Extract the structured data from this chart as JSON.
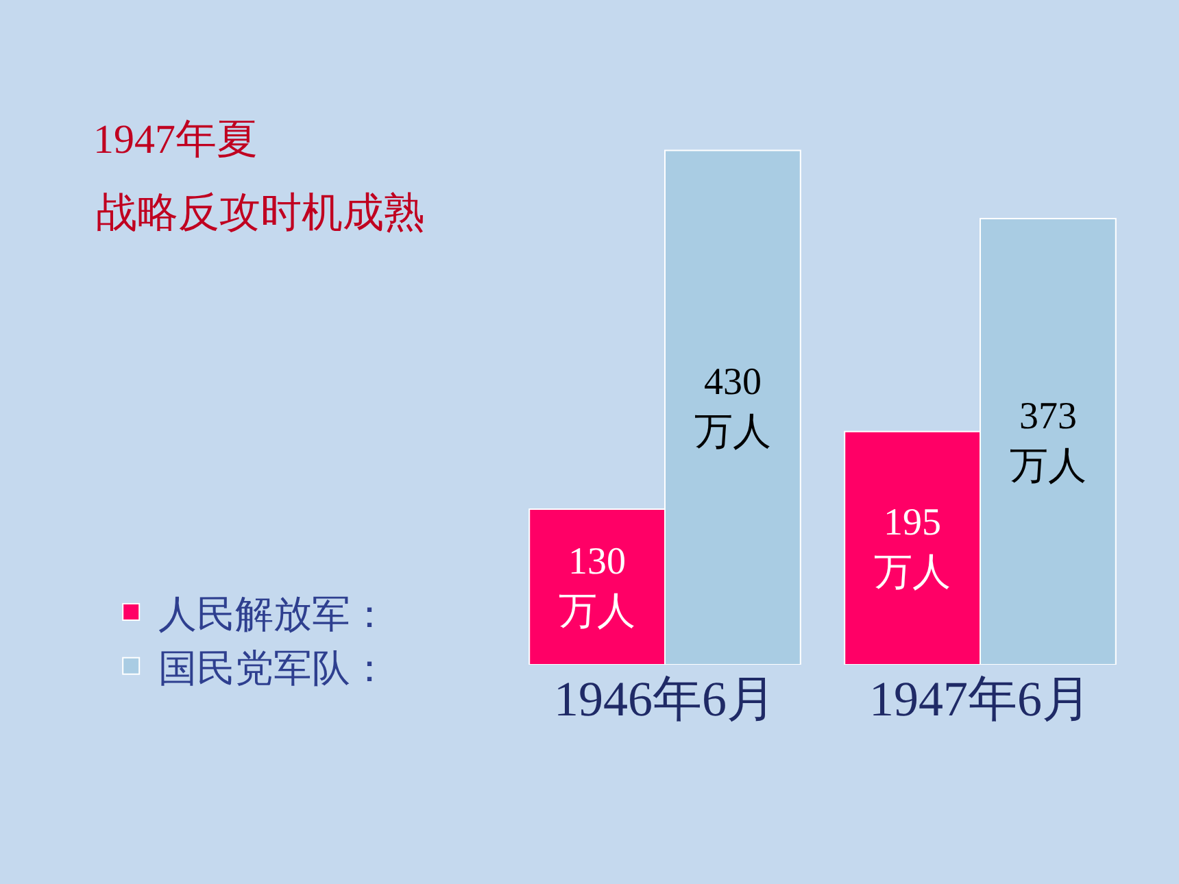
{
  "chart_data": {
    "type": "bar",
    "title": "1947年夏",
    "subtitle": "战略反攻时机成熟",
    "categories": [
      "1946年6月",
      "1947年6月"
    ],
    "series": [
      {
        "name": "人民解放军：",
        "color": "#ff0066",
        "values": [
          130,
          195
        ],
        "value_labels": [
          "130\n万人",
          "195\n万人"
        ]
      },
      {
        "name": "国民党军队：",
        "color": "#a9cce3",
        "values": [
          430,
          373
        ],
        "value_labels": [
          "430\n万人",
          "373\n万人"
        ]
      }
    ],
    "legend": "left",
    "grid": false
  }
}
